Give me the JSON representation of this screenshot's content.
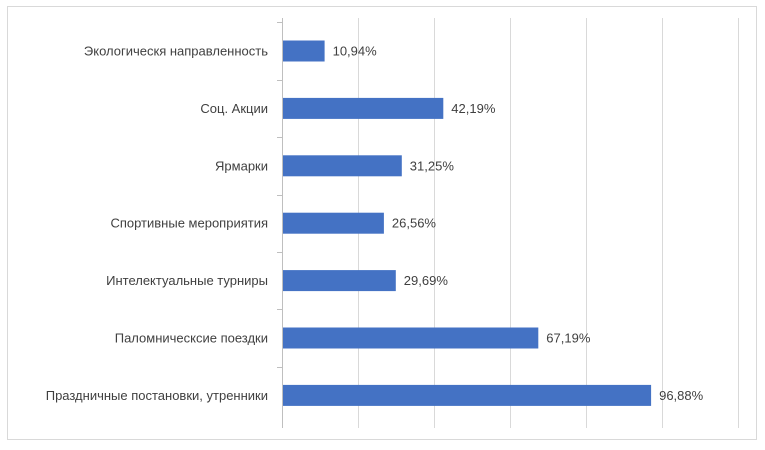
{
  "chart_data": {
    "type": "bar",
    "orientation": "horizontal",
    "categories": [
      "Экологическя направленность",
      "Соц. Акции",
      "Ярмарки",
      "Спортивные мероприятия",
      "Интелектуальные турниры",
      "Паломническсие поездки",
      "Праздничные постановки, утренники"
    ],
    "values": [
      10.94,
      42.19,
      31.25,
      26.56,
      29.69,
      67.19,
      96.88
    ],
    "data_labels": [
      "10,94%",
      "42,19%",
      "31,25%",
      "26,56%",
      "29,69%",
      "67,19%",
      "96,88%"
    ],
    "xlim": [
      0,
      120
    ],
    "x_gridline_step": 20,
    "grid": true,
    "legend": "none",
    "bar_color": "#4472c4",
    "title": "",
    "xlabel": "",
    "ylabel": ""
  }
}
